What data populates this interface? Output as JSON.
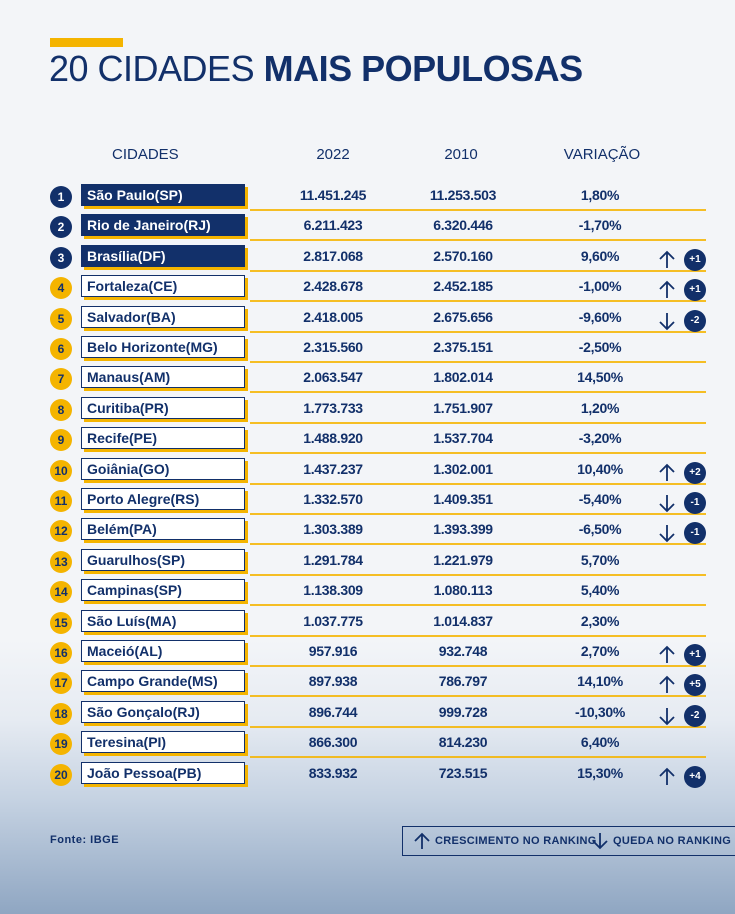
{
  "title": {
    "light": "20 CIDADES ",
    "bold": "MAIS POPULOSAS"
  },
  "headers": {
    "city": "CIDADES",
    "y2022": "2022",
    "y2010": "2010",
    "variation": "VARIAÇÃO"
  },
  "colors": {
    "navy": "#12306a",
    "yellow": "#f4b400"
  },
  "chart_data": {
    "type": "table",
    "columns": [
      "CIDADES",
      "2022",
      "2010",
      "VARIAÇÃO"
    ],
    "rows": [
      {
        "rank": "1",
        "city": "São Paulo(SP)",
        "y2022": "11.451.245",
        "y2010": "11.253.503",
        "variation": "1,80%",
        "trend": "",
        "change": ""
      },
      {
        "rank": "2",
        "city": "Rio de Janeiro(RJ)",
        "y2022": "6.211.423",
        "y2010": "6.320.446",
        "variation": "-1,70%",
        "trend": "",
        "change": ""
      },
      {
        "rank": "3",
        "city": "Brasília(DF)",
        "y2022": "2.817.068",
        "y2010": "2.570.160",
        "variation": "9,60%",
        "trend": "up",
        "change": "+1"
      },
      {
        "rank": "4",
        "city": "Fortaleza(CE)",
        "y2022": "2.428.678",
        "y2010": "2.452.185",
        "variation": "-1,00%",
        "trend": "up",
        "change": "+1"
      },
      {
        "rank": "5",
        "city": "Salvador(BA)",
        "y2022": "2.418.005",
        "y2010": "2.675.656",
        "variation": "-9,60%",
        "trend": "down",
        "change": "-2"
      },
      {
        "rank": "6",
        "city": "Belo Horizonte(MG)",
        "y2022": "2.315.560",
        "y2010": "2.375.151",
        "variation": "-2,50%",
        "trend": "",
        "change": ""
      },
      {
        "rank": "7",
        "city": "Manaus(AM)",
        "y2022": "2.063.547",
        "y2010": "1.802.014",
        "variation": "14,50%",
        "trend": "",
        "change": ""
      },
      {
        "rank": "8",
        "city": "Curitiba(PR)",
        "y2022": "1.773.733",
        "y2010": "1.751.907",
        "variation": "1,20%",
        "trend": "",
        "change": ""
      },
      {
        "rank": "9",
        "city": "Recife(PE)",
        "y2022": "1.488.920",
        "y2010": "1.537.704",
        "variation": "-3,20%",
        "trend": "",
        "change": ""
      },
      {
        "rank": "10",
        "city": "Goiânia(GO)",
        "y2022": "1.437.237",
        "y2010": "1.302.001",
        "variation": "10,40%",
        "trend": "up",
        "change": "+2"
      },
      {
        "rank": "11",
        "city": "Porto Alegre(RS)",
        "y2022": "1.332.570",
        "y2010": "1.409.351",
        "variation": "-5,40%",
        "trend": "down",
        "change": "-1"
      },
      {
        "rank": "12",
        "city": "Belém(PA)",
        "y2022": "1.303.389",
        "y2010": "1.393.399",
        "variation": "-6,50%",
        "trend": "down",
        "change": "-1"
      },
      {
        "rank": "13",
        "city": "Guarulhos(SP)",
        "y2022": "1.291.784",
        "y2010": "1.221.979",
        "variation": "5,70%",
        "trend": "",
        "change": ""
      },
      {
        "rank": "14",
        "city": "Campinas(SP)",
        "y2022": "1.138.309",
        "y2010": "1.080.113",
        "variation": "5,40%",
        "trend": "",
        "change": ""
      },
      {
        "rank": "15",
        "city": "São Luís(MA)",
        "y2022": "1.037.775",
        "y2010": "1.014.837",
        "variation": "2,30%",
        "trend": "",
        "change": ""
      },
      {
        "rank": "16",
        "city": "Maceió(AL)",
        "y2022": "957.916",
        "y2010": "932.748",
        "variation": "2,70%",
        "trend": "up",
        "change": "+1"
      },
      {
        "rank": "17",
        "city": "Campo Grande(MS)",
        "y2022": "897.938",
        "y2010": "786.797",
        "variation": "14,10%",
        "trend": "up",
        "change": "+5"
      },
      {
        "rank": "18",
        "city": "São Gonçalo(RJ)",
        "y2022": "896.744",
        "y2010": "999.728",
        "variation": "-10,30%",
        "trend": "down",
        "change": "-2"
      },
      {
        "rank": "19",
        "city": "Teresina(PI)",
        "y2022": "866.300",
        "y2010": "814.230",
        "variation": "6,40%",
        "trend": "",
        "change": ""
      },
      {
        "rank": "20",
        "city": "João Pessoa(PB)",
        "y2022": "833.932",
        "y2010": "723.515",
        "variation": "15,30%",
        "trend": "up",
        "change": "+4"
      }
    ]
  },
  "footer": {
    "source": "Fonte: IBGE",
    "legend_up": "CRESCIMENTO NO RANKING",
    "legend_down": "QUEDA NO RANKING"
  }
}
